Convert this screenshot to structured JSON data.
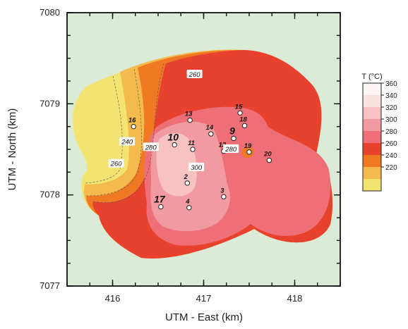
{
  "map": {
    "x_axis_label": "UTM - East (km)",
    "y_axis_label": "UTM - North (km)",
    "x_range": [
      415.5,
      418.5
    ],
    "y_range": [
      7077,
      7080
    ],
    "x_ticks": [
      {
        "value": 416,
        "label": "416"
      },
      {
        "value": 417,
        "label": "417"
      },
      {
        "value": 418,
        "label": "418"
      }
    ],
    "y_ticks": [
      {
        "value": 7077,
        "label": "7077"
      },
      {
        "value": 7078,
        "label": "7078"
      },
      {
        "value": 7079,
        "label": "7079"
      },
      {
        "value": 7080,
        "label": "7080"
      }
    ],
    "background_color": "#dcebd8"
  },
  "wells": [
    {
      "id": "16",
      "x": 416.23,
      "y": 7078.75,
      "emphasis": false
    },
    {
      "id": "13",
      "x": 416.85,
      "y": 7078.82,
      "emphasis": false
    },
    {
      "id": "10",
      "x": 416.68,
      "y": 7078.55,
      "emphasis": true
    },
    {
      "id": "11",
      "x": 416.88,
      "y": 7078.5,
      "emphasis": false
    },
    {
      "id": "14",
      "x": 417.08,
      "y": 7078.67,
      "emphasis": false
    },
    {
      "id": "15",
      "x": 417.4,
      "y": 7078.9,
      "emphasis": false
    },
    {
      "id": "18",
      "x": 417.45,
      "y": 7078.76,
      "emphasis": false
    },
    {
      "id": "9",
      "x": 417.33,
      "y": 7078.62,
      "emphasis": true
    },
    {
      "id": "12",
      "x": 417.22,
      "y": 7078.48,
      "emphasis": false
    },
    {
      "id": "19",
      "x": 417.5,
      "y": 7078.47,
      "emphasis": false
    },
    {
      "id": "20",
      "x": 417.72,
      "y": 7078.38,
      "emphasis": false
    },
    {
      "id": "2",
      "x": 416.82,
      "y": 7078.13,
      "emphasis": false
    },
    {
      "id": "3",
      "x": 417.22,
      "y": 7077.98,
      "emphasis": false
    },
    {
      "id": "17",
      "x": 416.53,
      "y": 7077.87,
      "emphasis": true
    },
    {
      "id": "4",
      "x": 416.84,
      "y": 7077.86,
      "emphasis": false
    }
  ],
  "isotherm_labels": [
    {
      "text": "260",
      "value": 260,
      "x": 416.9,
      "y": 7079.32
    },
    {
      "text": "240",
      "value": 240,
      "x": 416.16,
      "y": 7078.58
    },
    {
      "text": "260",
      "value": 260,
      "x": 416.04,
      "y": 7078.34
    },
    {
      "text": "280",
      "value": 280,
      "x": 416.42,
      "y": 7078.52
    },
    {
      "text": "300",
      "value": 300,
      "x": 416.92,
      "y": 7078.3
    },
    {
      "text": "280",
      "value": 280,
      "x": 417.3,
      "y": 7078.5
    }
  ],
  "legend": {
    "title": "T (°C)",
    "items": [
      {
        "label": "360",
        "color": "#fbf4f2"
      },
      {
        "label": "340",
        "color": "#f9e1df"
      },
      {
        "label": "320",
        "color": "#f6c2c2"
      },
      {
        "label": "300",
        "color": "#f19aa2"
      },
      {
        "label": "280",
        "color": "#ee6f77"
      },
      {
        "label": "260",
        "color": "#e8412e"
      },
      {
        "label": "240",
        "color": "#f07924"
      },
      {
        "label": "220",
        "color": "#f4ba4d"
      },
      {
        "label": "",
        "color": "#f3e472"
      }
    ]
  }
}
